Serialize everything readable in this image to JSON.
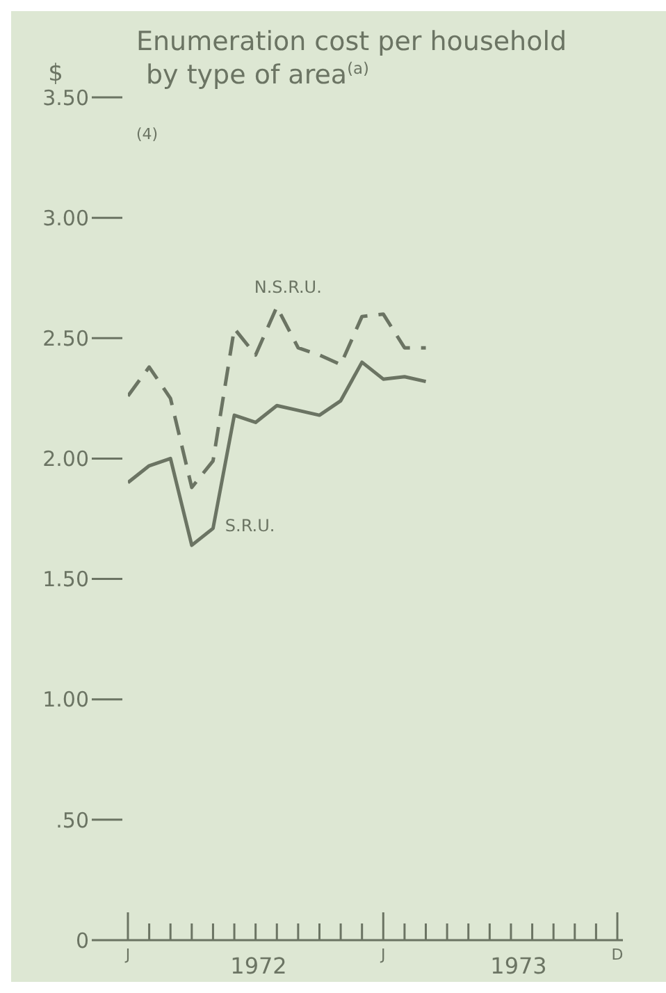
{
  "chart_data": {
    "type": "line",
    "title": "Enumeration cost per household\nby type of area$^{(a)}$",
    "ylabel": "$",
    "annotations": [
      "(4)",
      "1972",
      "1973"
    ],
    "categories": [
      "J",
      null,
      null,
      null,
      null,
      null,
      null,
      null,
      null,
      null,
      null,
      null,
      "J",
      null,
      null,
      null,
      null,
      null,
      null,
      null,
      null,
      null,
      null,
      "D"
    ],
    "series": [
      {
        "name": "N.S.R.U.",
        "color": "#6b7463",
        "line_style": "dashed",
        "values": [
          2.26,
          2.38,
          2.25,
          1.88,
          1.99,
          2.54,
          2.43,
          2.63,
          2.46,
          2.43,
          2.39,
          2.59,
          2.6,
          2.46,
          2.46,
          null,
          null,
          null,
          null,
          null,
          null,
          null,
          null,
          null
        ]
      },
      {
        "name": "S.R.U.",
        "color": "#6b7463",
        "line_style": "solid",
        "values": [
          1.9,
          1.97,
          2.0,
          1.64,
          1.71,
          2.18,
          2.15,
          2.22,
          2.2,
          2.18,
          2.24,
          2.4,
          2.33,
          2.34,
          2.32,
          null,
          null,
          null,
          null,
          null,
          null,
          null,
          null,
          null
        ]
      }
    ],
    "ylim": [
      0,
      3.5
    ],
    "yticks": [
      0,
      {
        "value": 0.5,
        "label": ".50"
      },
      {
        "value": 1,
        "label": "1.00"
      },
      {
        "value": 1.5,
        "label": "1.50"
      },
      {
        "value": 2,
        "label": "2.00"
      },
      {
        "value": 2.5,
        "label": "2.50"
      },
      {
        "value": 3,
        "label": "3.00"
      },
      {
        "value": 3.5,
        "label": "3.50"
      }
    ],
    "grid": false,
    "legend": false,
    "marker": "none"
  }
}
